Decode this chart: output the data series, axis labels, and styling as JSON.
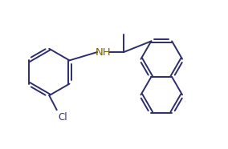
{
  "background_color": "#ffffff",
  "bond_color": "#2d2d6b",
  "label_color_N": "#7a6000",
  "label_color_Cl": "#2d2d6b",
  "line_width": 1.4,
  "font_size_label": 8.5,
  "xlim": [
    -0.2,
    5.6
  ],
  "ylim": [
    -0.5,
    3.8
  ]
}
